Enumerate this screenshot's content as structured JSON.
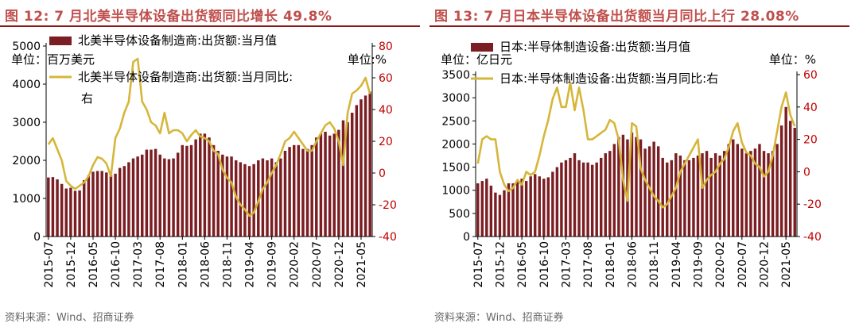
{
  "colors": {
    "bar": "#7b1e23",
    "line": "#d6b63a",
    "title": "#c0504d",
    "rule": "#8b1a1a",
    "right_axis": "#c00000"
  },
  "left": {
    "title": "图 12: 7 月北美半导体设备出货额同比增长 49.8%",
    "source": "资料来源：Wind、招商证券",
    "unit_left": "单位：百万美元",
    "unit_right": "单位:%",
    "legend_bar": "北美半导体设备制造商:出货额:当月值",
    "legend_line": "北美半导体设备制造商:出货额:当月同比:右"
  },
  "right": {
    "title": "图 13: 7 月日本半导体设备出货额当月同比上行 28.08%",
    "source": "资料来源：Wind、招商证券",
    "unit_left": "单位：亿日元",
    "unit_right": "单位：%",
    "legend_bar": "日本:半导体制造设备:出货额:当月值",
    "legend_line": "日本:半导体制造设备:出货额:当月同比:右"
  },
  "chart_data": [
    {
      "type": "bar+line",
      "title": "图 12: 7 月北美半导体设备出货额同比增长 49.8%",
      "categories": [
        "2015-07",
        "2015-08",
        "2015-09",
        "2015-10",
        "2015-11",
        "2015-12",
        "2016-01",
        "2016-02",
        "2016-03",
        "2016-04",
        "2016-05",
        "2016-06",
        "2016-07",
        "2016-08",
        "2016-09",
        "2016-10",
        "2016-11",
        "2016-12",
        "2017-01",
        "2017-02",
        "2017-03",
        "2017-04",
        "2017-05",
        "2017-06",
        "2017-07",
        "2017-08",
        "2017-09",
        "2017-10",
        "2017-11",
        "2017-12",
        "2018-01",
        "2018-02",
        "2018-03",
        "2018-04",
        "2018-05",
        "2018-06",
        "2018-07",
        "2018-08",
        "2018-09",
        "2018-10",
        "2018-11",
        "2018-12",
        "2019-01",
        "2019-02",
        "2019-03",
        "2019-04",
        "2019-05",
        "2019-06",
        "2019-07",
        "2019-08",
        "2019-09",
        "2019-10",
        "2019-11",
        "2019-12",
        "2020-01",
        "2020-02",
        "2020-03",
        "2020-04",
        "2020-05",
        "2020-06",
        "2020-07",
        "2020-08",
        "2020-09",
        "2020-10",
        "2020-11",
        "2020-12",
        "2021-01",
        "2021-02",
        "2021-03",
        "2021-04",
        "2021-05",
        "2021-06",
        "2021-07"
      ],
      "tick_labels": [
        "2015-07",
        "2015-12",
        "2016-05",
        "2016-10",
        "2017-03",
        "2017-08",
        "2018-01",
        "2018-06",
        "2018-11",
        "2019-04",
        "2019-09",
        "2020-02",
        "2020-07",
        "2020-12",
        "2021-05"
      ],
      "series": [
        {
          "name": "北美半导体设备制造商:出货额:当月值",
          "axis": "left",
          "kind": "bar",
          "values": [
            1550,
            1560,
            1500,
            1380,
            1260,
            1280,
            1200,
            1210,
            1480,
            1600,
            1700,
            1720,
            1720,
            1680,
            1620,
            1650,
            1800,
            1850,
            1950,
            2050,
            2100,
            2150,
            2280,
            2280,
            2300,
            2150,
            2050,
            2030,
            2050,
            2200,
            2400,
            2380,
            2400,
            2550,
            2700,
            2700,
            2600,
            2400,
            2250,
            2150,
            2100,
            2100,
            2000,
            1950,
            1900,
            1850,
            1900,
            2000,
            2050,
            2000,
            2050,
            1950,
            2050,
            2250,
            2350,
            2400,
            2400,
            2300,
            2300,
            2400,
            2600,
            2700,
            2750,
            2650,
            2700,
            2800,
            3050,
            3000,
            3250,
            3450,
            3600,
            3700,
            3800
          ]
        },
        {
          "name": "北美半导体设备制造商:出货额:当月同比:右",
          "axis": "right",
          "kind": "line",
          "values": [
            18,
            22,
            15,
            8,
            -5,
            -8,
            -10,
            -8,
            -6,
            -2,
            5,
            10,
            9,
            6,
            -2,
            22,
            28,
            38,
            45,
            70,
            72,
            45,
            40,
            32,
            30,
            25,
            38,
            25,
            27,
            27,
            25,
            20,
            24,
            27,
            23,
            22,
            20,
            14,
            12,
            2,
            -3,
            -6,
            -15,
            -20,
            -23,
            -27,
            -25,
            -18,
            -10,
            -6,
            0,
            5,
            12,
            20,
            22,
            26,
            22,
            18,
            14,
            14,
            20,
            25,
            30,
            32,
            28,
            20,
            5,
            38,
            50,
            52,
            55,
            60,
            49.8
          ]
        }
      ],
      "ylim_left": [
        0,
        5000
      ],
      "ylim_right": [
        -40,
        80
      ],
      "yticks_left": [
        0,
        1000,
        2000,
        3000,
        4000,
        5000
      ],
      "yticks_right": [
        -40,
        -20,
        0,
        20,
        40,
        60,
        80
      ]
    },
    {
      "type": "bar+line",
      "title": "图 13: 7 月日本半导体设备出货额当月同比上行 28.08%",
      "categories": [
        "2015-07",
        "2015-08",
        "2015-09",
        "2015-10",
        "2015-11",
        "2015-12",
        "2016-01",
        "2016-02",
        "2016-03",
        "2016-04",
        "2016-05",
        "2016-06",
        "2016-07",
        "2016-08",
        "2016-09",
        "2016-10",
        "2016-11",
        "2016-12",
        "2017-01",
        "2017-02",
        "2017-03",
        "2017-04",
        "2017-05",
        "2017-06",
        "2017-07",
        "2017-08",
        "2017-09",
        "2017-10",
        "2017-11",
        "2017-12",
        "2018-01",
        "2018-02",
        "2018-03",
        "2018-04",
        "2018-05",
        "2018-06",
        "2018-07",
        "2018-08",
        "2018-09",
        "2018-10",
        "2018-11",
        "2018-12",
        "2019-01",
        "2019-02",
        "2019-03",
        "2019-04",
        "2019-05",
        "2019-06",
        "2019-07",
        "2019-08",
        "2019-09",
        "2019-10",
        "2019-11",
        "2019-12",
        "2020-01",
        "2020-02",
        "2020-03",
        "2020-04",
        "2020-05",
        "2020-06",
        "2020-07",
        "2020-08",
        "2020-09",
        "2020-10",
        "2020-11",
        "2020-12",
        "2021-01",
        "2021-02",
        "2021-03",
        "2021-04",
        "2021-05",
        "2021-06",
        "2021-07"
      ],
      "tick_labels": [
        "2015-07",
        "2015-12",
        "2016-05",
        "2016-10",
        "2017-03",
        "2017-08",
        "2018-01",
        "2018-06",
        "2018-11",
        "2019-04",
        "2019-09",
        "2020-02",
        "2020-07",
        "2020-12",
        "2021-05"
      ],
      "series": [
        {
          "name": "日本:半导体制造设备:出货额:当月值",
          "axis": "left",
          "kind": "bar",
          "values": [
            1150,
            1200,
            1250,
            1100,
            950,
            900,
            1000,
            1150,
            1150,
            1200,
            1250,
            1200,
            1300,
            1350,
            1300,
            1250,
            1280,
            1400,
            1500,
            1600,
            1650,
            1700,
            1800,
            1650,
            1600,
            1600,
            1550,
            1600,
            1700,
            1800,
            1850,
            2000,
            2150,
            2200,
            2100,
            2250,
            2150,
            2100,
            1900,
            1950,
            2050,
            1950,
            1700,
            1600,
            1650,
            1800,
            1750,
            1650,
            1650,
            1700,
            1750,
            1800,
            1850,
            1700,
            1800,
            1750,
            1850,
            2000,
            2100,
            2000,
            1900,
            1800,
            1850,
            1900,
            2000,
            1850,
            1800,
            1850,
            2000,
            2400,
            2800,
            2500,
            2350
          ]
        },
        {
          "name": "日本:半导体制造设备:出货额:当月同比:右",
          "axis": "right",
          "kind": "line",
          "values": [
            5,
            20,
            22,
            20,
            20,
            0,
            -8,
            -12,
            -10,
            -5,
            -8,
            0,
            -2,
            0,
            10,
            22,
            32,
            45,
            52,
            40,
            40,
            55,
            38,
            52,
            38,
            20,
            20,
            22,
            24,
            26,
            32,
            30,
            20,
            -5,
            -18,
            30,
            28,
            2,
            -5,
            -10,
            -15,
            -18,
            -22,
            -20,
            -15,
            -10,
            0,
            5,
            10,
            15,
            20,
            -10,
            -5,
            -2,
            0,
            5,
            8,
            15,
            25,
            30,
            18,
            12,
            10,
            5,
            3,
            -3,
            0,
            10,
            25,
            40,
            49,
            35,
            28.08
          ]
        }
      ],
      "ylim_left": [
        0,
        3500
      ],
      "ylim_right": [
        -40,
        60
      ],
      "yticks_left": [
        0,
        500,
        1000,
        1500,
        2000,
        2500,
        3000,
        3500
      ],
      "yticks_right": [
        -40,
        -20,
        0,
        20,
        40,
        60
      ]
    }
  ]
}
